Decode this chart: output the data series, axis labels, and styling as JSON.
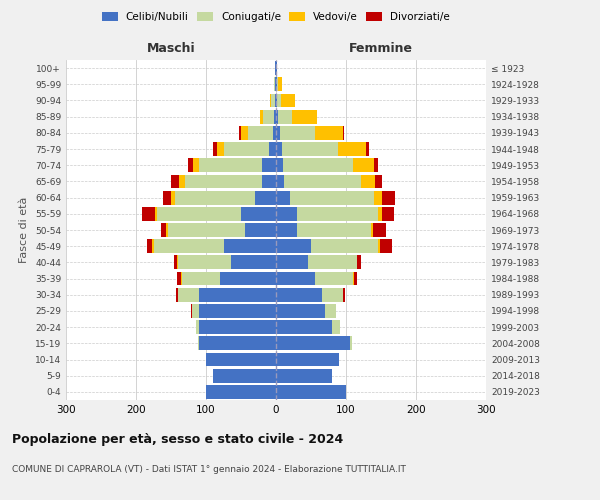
{
  "age_groups": [
    "0-4",
    "5-9",
    "10-14",
    "15-19",
    "20-24",
    "25-29",
    "30-34",
    "35-39",
    "40-44",
    "45-49",
    "50-54",
    "55-59",
    "60-64",
    "65-69",
    "70-74",
    "75-79",
    "80-84",
    "85-89",
    "90-94",
    "95-99",
    "100+"
  ],
  "birth_years": [
    "2019-2023",
    "2014-2018",
    "2009-2013",
    "2004-2008",
    "1999-2003",
    "1994-1998",
    "1989-1993",
    "1984-1988",
    "1979-1983",
    "1974-1978",
    "1969-1973",
    "1964-1968",
    "1959-1963",
    "1954-1958",
    "1949-1953",
    "1944-1948",
    "1939-1943",
    "1934-1938",
    "1929-1933",
    "1924-1928",
    "≤ 1923"
  ],
  "colors": {
    "celibi": "#4472c4",
    "coniugati": "#c5d9a0",
    "vedovi": "#ffc000",
    "divorziati": "#c00000"
  },
  "maschi": {
    "celibi": [
      100,
      90,
      100,
      110,
      110,
      110,
      110,
      80,
      65,
      75,
      45,
      50,
      30,
      20,
      20,
      10,
      5,
      3,
      2,
      1,
      1
    ],
    "coniugati": [
      0,
      0,
      0,
      2,
      5,
      10,
      30,
      55,
      75,
      100,
      110,
      120,
      115,
      110,
      90,
      65,
      35,
      15,
      5,
      2,
      0
    ],
    "vedovi": [
      0,
      0,
      0,
      0,
      0,
      0,
      0,
      1,
      1,
      2,
      2,
      3,
      5,
      8,
      8,
      10,
      10,
      5,
      2,
      0,
      0
    ],
    "divorziati": [
      0,
      0,
      0,
      0,
      0,
      2,
      3,
      5,
      5,
      8,
      8,
      18,
      12,
      12,
      8,
      5,
      3,
      0,
      0,
      0,
      0
    ]
  },
  "femmine": {
    "celibi": [
      100,
      80,
      90,
      105,
      80,
      70,
      65,
      55,
      45,
      50,
      30,
      30,
      20,
      12,
      10,
      8,
      5,
      3,
      2,
      1,
      1
    ],
    "coniugati": [
      0,
      0,
      0,
      3,
      12,
      15,
      30,
      55,
      70,
      95,
      105,
      115,
      120,
      110,
      100,
      80,
      50,
      20,
      5,
      2,
      0
    ],
    "vedovi": [
      0,
      0,
      0,
      0,
      0,
      0,
      0,
      1,
      1,
      3,
      4,
      6,
      12,
      20,
      30,
      40,
      40,
      35,
      20,
      5,
      1
    ],
    "divorziati": [
      0,
      0,
      0,
      0,
      0,
      0,
      3,
      5,
      5,
      18,
      18,
      18,
      18,
      10,
      5,
      5,
      2,
      0,
      0,
      1,
      0
    ]
  },
  "title1": "Popolazione per età, sesso e stato civile - 2024",
  "title2": "COMUNE DI CAPRAROLA (VT) - Dati ISTAT 1° gennaio 2024 - Elaborazione TUTTITALIA.IT",
  "xlabel_maschi": "Maschi",
  "xlabel_femmine": "Femmine",
  "ylabel_left": "Fasce di età",
  "legend_labels": [
    "Celibi/Nubili",
    "Coniugati/e",
    "Vedovi/e",
    "Divorziati/e"
  ],
  "xlim": 300,
  "bg_color": "#f0f0f0",
  "plot_bg_color": "#ffffff",
  "grid_color": "#cccccc"
}
